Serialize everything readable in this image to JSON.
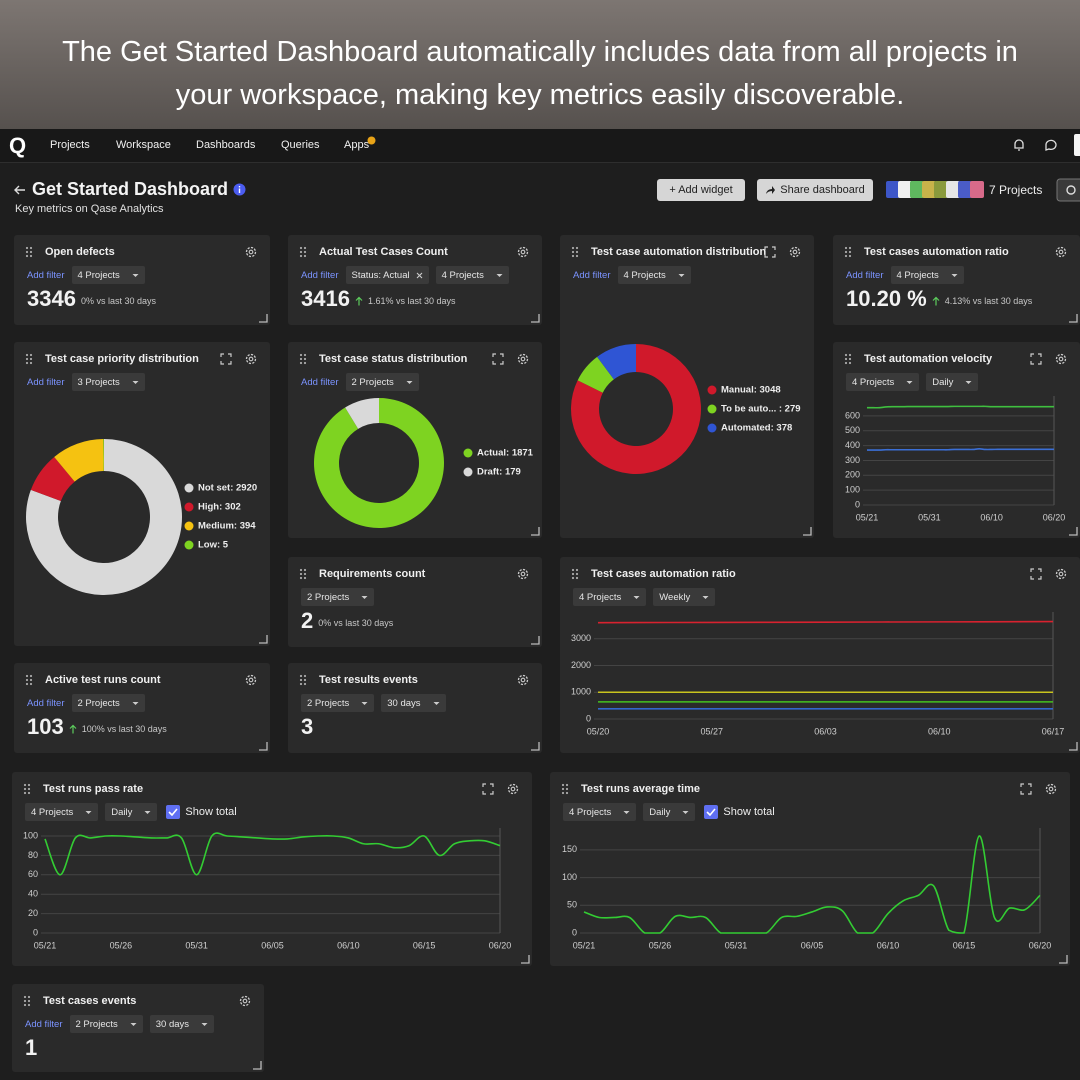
{
  "banner": {
    "lines": [
      "The Get Started Dashboard automatically includes data from all projects in",
      "your workspace, making key metrics easily discoverable."
    ]
  },
  "nav": {
    "logo": "Q",
    "items": [
      "Projects",
      "Workspace",
      "Dashboards",
      "Queries",
      "Apps"
    ]
  },
  "dashboard": {
    "title": "Get Started Dashboard",
    "subtitle": "Key metrics on Qase Analytics",
    "buttons": [
      "+ Add widget",
      "Share dashboard"
    ],
    "projects": "7 Projects"
  },
  "widgets": [
    {
      "title": "Open defects",
      "add_filter": "Add filter",
      "filters": [
        {
          "label": "4 Projects"
        }
      ],
      "metric": "3346",
      "change": "0% vs last 30 days"
    },
    {
      "title": "Actual Test Cases Count",
      "add_filter": "Add filter",
      "filters": [
        {
          "label": "Status: Actual",
          "removable": true
        },
        {
          "label": "4 Projects"
        }
      ],
      "metric": "3416",
      "change": "1.61% vs last 30 days",
      "change_up": true
    },
    {
      "title": "Test case automation distribution",
      "expand": true,
      "add_filter": "Add filter",
      "filters": [
        {
          "label": "4 Projects"
        }
      ],
      "chart": {
        "type": "donut",
        "labels": [
          "Manual: 3048",
          "To be auto... : 279",
          "Automated: 378"
        ],
        "values": [
          3048,
          279,
          378
        ],
        "colors": [
          "#d0192b",
          "#7ed321",
          "#2f55d4"
        ]
      }
    },
    {
      "title": "Test cases automation ratio",
      "add_filter": "Add filter",
      "filters": [
        {
          "label": "4 Projects"
        }
      ],
      "metric": "10.20 %",
      "change": "4.13% vs last 30 days",
      "change_up": true
    },
    {
      "title": "Test case priority distribution",
      "expand": true,
      "add_filter": "Add filter",
      "filters": [
        {
          "label": "3 Projects"
        }
      ],
      "chart": {
        "type": "donut",
        "labels": [
          "Not set: 2920",
          "High: 302",
          "Medium: 394",
          "Low: 5"
        ],
        "values": [
          2920,
          302,
          394,
          5
        ],
        "colors": [
          "#d9d9d9",
          "#d0192b",
          "#f5c211",
          "#7ed321"
        ]
      }
    },
    {
      "title": "Test case status distribution",
      "expand": true,
      "add_filter": "Add filter",
      "filters": [
        {
          "label": "2 Projects"
        }
      ],
      "chart": {
        "type": "donut",
        "labels": [
          "Actual: 1871",
          "Draft: 179"
        ],
        "values": [
          1871,
          179
        ],
        "colors": [
          "#7ed321",
          "#d9d9d9"
        ]
      }
    },
    {
      "title": "Test automation velocity",
      "expand": true,
      "filters": [
        {
          "label": "4 Projects"
        },
        {
          "label": "Daily"
        }
      ],
      "chart": {
        "type": "line",
        "categories": [
          "05/21",
          null,
          null,
          null,
          null,
          null,
          null,
          null,
          null,
          null,
          "05/31",
          null,
          null,
          null,
          null,
          null,
          null,
          null,
          null,
          null,
          "06/10",
          null,
          null,
          null,
          null,
          null,
          null,
          null,
          null,
          null,
          "06/20"
        ],
        "ylim": [
          0,
          680
        ],
        "yticks": [
          0,
          100,
          200,
          300,
          400,
          500,
          600
        ],
        "grid": true,
        "series": [
          {
            "color": "#3fbf3f",
            "values": [
              655,
              655,
              655,
              660,
              662,
              662,
              662,
              663,
              663,
              663,
              663,
              663,
              663,
              663,
              664,
              664,
              664,
              664,
              664,
              664,
              662,
              662,
              662,
              662,
              662,
              662,
              662,
              662,
              662,
              662,
              662
            ]
          },
          {
            "color": "#3b6fd6",
            "values": [
              370,
              370,
              370,
              372,
              372,
              372,
              372,
              372,
              372,
              372,
              372,
              372,
              372,
              372,
              374,
              374,
              374,
              374,
              378,
              374,
              374,
              375,
              375,
              375,
              375,
              375,
              375,
              375,
              375,
              375,
              375
            ]
          }
        ]
      }
    },
    {
      "title": "Requirements count",
      "filters": [
        {
          "label": "2 Projects"
        }
      ],
      "metric": "2",
      "change": "0% vs last 30 days"
    },
    {
      "title": "Test cases automation ratio",
      "expand": true,
      "filters": [
        {
          "label": "4 Projects"
        },
        {
          "label": "Weekly"
        }
      ],
      "chart": {
        "type": "line",
        "categories": [
          "05/20",
          "05/27",
          "06/03",
          "06/10",
          "06/17"
        ],
        "ylim": [
          0,
          3700
        ],
        "yticks": [
          0,
          1000,
          2000,
          3000
        ],
        "grid": true,
        "series": [
          {
            "color": "#d8222f",
            "values": [
              3600,
              3610,
              3620,
              3630,
              3640
            ]
          },
          {
            "color": "#c9c41e",
            "values": [
              1000,
              1000,
              1000,
              1000,
              1000
            ]
          },
          {
            "color": "#45c21f",
            "values": [
              640,
              640,
              640,
              640,
              640
            ]
          },
          {
            "color": "#3366cc",
            "values": [
              380,
              380,
              380,
              380,
              380
            ]
          }
        ]
      }
    },
    {
      "title": "Active test runs count",
      "add_filter": "Add filter",
      "filters": [
        {
          "label": "2 Projects"
        }
      ],
      "metric": "103",
      "change": "100% vs last 30 days",
      "change_up": true
    },
    {
      "title": "Test results events",
      "filters": [
        {
          "label": "2 Projects"
        },
        {
          "label": "30 days"
        }
      ],
      "metric": "3"
    },
    {
      "title": "Test runs pass rate",
      "expand": true,
      "filters": [
        {
          "label": "4 Projects"
        },
        {
          "label": "Daily"
        }
      ],
      "show_total": "Show total",
      "chart": {
        "type": "line",
        "categories": [
          "05/21",
          null,
          null,
          null,
          null,
          "05/26",
          null,
          null,
          null,
          null,
          "05/31",
          null,
          null,
          null,
          null,
          "06/05",
          null,
          null,
          null,
          null,
          "06/10",
          null,
          null,
          null,
          null,
          "06/15",
          null,
          null,
          null,
          null,
          "06/20"
        ],
        "ylim": [
          0,
          100
        ],
        "yticks": [
          0,
          20,
          40,
          60,
          80,
          100
        ],
        "grid": true,
        "series": [
          {
            "color": "#33cc33",
            "values": [
              97,
              60,
              98,
              98,
              100,
              100,
              99,
              98,
              98,
              98,
              60,
              100,
              100,
              99,
              98,
              97,
              97,
              99,
              100,
              100,
              98,
              92,
              92,
              88,
              90,
              100,
              80,
              92,
              95,
              95,
              90
            ]
          }
        ]
      }
    },
    {
      "title": "Test runs average time",
      "expand": true,
      "filters": [
        {
          "label": "4 Projects"
        },
        {
          "label": "Daily"
        }
      ],
      "show_total": "Show total",
      "chart": {
        "type": "line",
        "categories": [
          "05/21",
          null,
          null,
          null,
          null,
          "05/26",
          null,
          null,
          null,
          null,
          "05/31",
          null,
          null,
          null,
          null,
          "06/05",
          null,
          null,
          null,
          null,
          "06/10",
          null,
          null,
          null,
          null,
          "06/15",
          null,
          null,
          null,
          null,
          "06/20"
        ],
        "ylim": [
          0,
          175
        ],
        "yticks": [
          0,
          50,
          100,
          150
        ],
        "grid": true,
        "series": [
          {
            "color": "#33cc33",
            "values": [
              38,
              28,
              28,
              28,
              0,
              0,
              30,
              28,
              28,
              0,
              0,
              0,
              0,
              28,
              30,
              38,
              47,
              40,
              0,
              0,
              35,
              58,
              68,
              85,
              5,
              0,
              175,
              28,
              45,
              42,
              68
            ]
          }
        ]
      }
    },
    {
      "title": "Test cases events",
      "add_filter": "Add filter",
      "filters": [
        {
          "label": "2 Projects"
        },
        {
          "label": "30 days"
        }
      ],
      "metric": "1"
    }
  ]
}
